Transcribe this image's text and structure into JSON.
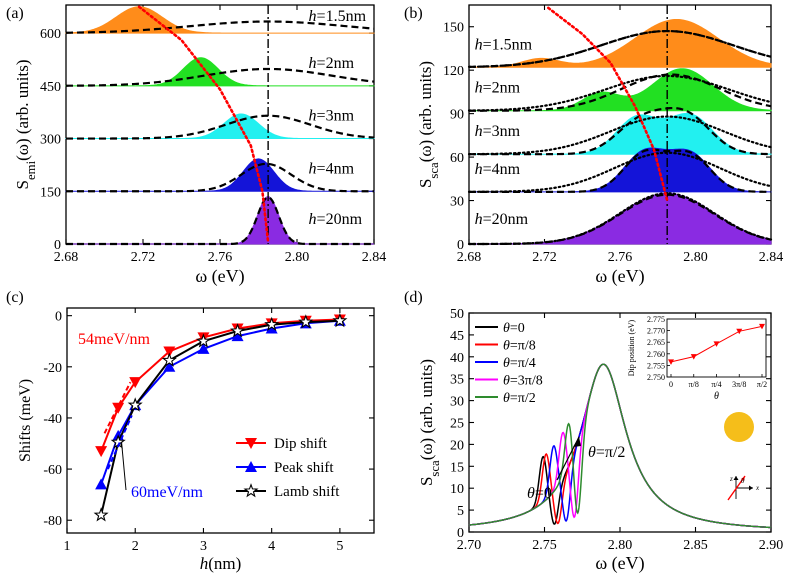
{
  "figure": {
    "panel_labels": [
      "(a)",
      "(b)",
      "(c)",
      "(d)"
    ]
  },
  "colors": {
    "h1_5": "#FF8C1A",
    "h2": "#22E022",
    "h3": "#22F0F0",
    "h4": "#1414D8",
    "h20": "#8A2BE2",
    "red": "#FF0000",
    "blue": "#0000FF",
    "black": "#000000",
    "magenta": "#FF00FF",
    "green": "#2E8B2E"
  },
  "chart_data": [
    {
      "panel": "(a)",
      "type": "area",
      "xlabel": "ω (eV)",
      "ylabel": "S_emi(ω) (arb. units)",
      "ylabel_main": "S",
      "ylabel_sub": "emi",
      "ylabel_rest": "(ω) (arb. units)",
      "xlim": [
        2.68,
        2.84
      ],
      "ylim": [
        0,
        680
      ],
      "xticks": [
        2.68,
        2.72,
        2.76,
        2.8,
        2.84
      ],
      "xtick_labels": [
        "2.68",
        "2.72",
        "2.76",
        "2.80",
        "2.84"
      ],
      "yticks": [
        0,
        150,
        300,
        450,
        600
      ],
      "ytick_labels": [
        "0",
        "150",
        "300",
        "450",
        "600"
      ],
      "vline_x": 2.785,
      "series": [
        {
          "name": "h=1.5nm",
          "offset": 600,
          "fill_peaks": [
            {
              "x": 2.718,
              "a": 75,
              "w": 0.012
            }
          ],
          "dash_peaks": [
            {
              "x": 2.785,
              "a": 33,
              "w": 0.04
            }
          ]
        },
        {
          "name": "h=2nm",
          "offset": 450,
          "fill_peaks": [
            {
              "x": 2.75,
              "a": 80,
              "w": 0.009
            }
          ],
          "dash_peaks": [
            {
              "x": 2.785,
              "a": 48,
              "w": 0.033
            }
          ]
        },
        {
          "name": "h=3nm",
          "offset": 300,
          "fill_peaks": [
            {
              "x": 2.771,
              "a": 70,
              "w": 0.009
            }
          ],
          "dash_peaks": [
            {
              "x": 2.785,
              "a": 65,
              "w": 0.022
            }
          ]
        },
        {
          "name": "h=4nm",
          "offset": 150,
          "fill_peaks": [
            {
              "x": 2.78,
              "a": 92,
              "w": 0.008
            }
          ],
          "dash_peaks": [
            {
              "x": 2.784,
              "a": 78,
              "w": 0.013
            }
          ]
        },
        {
          "name": "h=20nm",
          "offset": 0,
          "fill_peaks": [
            {
              "x": 2.785,
              "a": 135,
              "w": 0.0055
            }
          ],
          "dash_peaks": [
            {
              "x": 2.785,
              "a": 133,
              "w": 0.0055
            }
          ]
        }
      ],
      "trace": [
        [
          2.718,
          675
        ],
        [
          2.74,
          580
        ],
        [
          2.76,
          440
        ],
        [
          2.776,
          280
        ],
        [
          2.782,
          150
        ],
        [
          2.785,
          5
        ]
      ],
      "label_x": 2.806
    },
    {
      "panel": "(b)",
      "type": "area",
      "xlabel": "ω (eV)",
      "ylabel": "S_sca(ω) (arb. units)",
      "ylabel_main": "S",
      "ylabel_sub": "sca",
      "ylabel_rest": "(ω) (arb. units)",
      "xlim": [
        2.68,
        2.84
      ],
      "ylim": [
        0,
        165
      ],
      "xticks": [
        2.68,
        2.72,
        2.76,
        2.8,
        2.84
      ],
      "xtick_labels": [
        "2.68",
        "2.72",
        "2.76",
        "2.80",
        "2.84"
      ],
      "yticks": [
        0,
        30,
        60,
        90,
        120,
        150
      ],
      "ytick_labels": [
        "0",
        "30",
        "60",
        "90",
        "120",
        "150"
      ],
      "vline_x": 2.785,
      "series": [
        {
          "name": "h=1.5nm",
          "offset": 122,
          "fill_peaks": [
            {
              "x": 2.79,
              "a": 33,
              "w": 0.022
            },
            {
              "x": 2.718,
              "a": 6,
              "w": 0.01
            }
          ],
          "dash_peaks": [
            {
              "x": 2.785,
              "a": 25,
              "w": 0.035
            }
          ],
          "dot_peaks": [
            {
              "x": 2.785,
              "a": 25,
              "w": 0.035
            }
          ]
        },
        {
          "name": "h=2nm",
          "offset": 92,
          "fill_peaks": [
            {
              "x": 2.793,
              "a": 29,
              "w": 0.016
            },
            {
              "x": 2.75,
              "a": 12,
              "w": 0.01
            }
          ],
          "dash_peaks": [
            {
              "x": 2.787,
              "a": 25,
              "w": 0.026
            }
          ],
          "dot_peaks": [
            {
              "x": 2.785,
              "a": 24,
              "w": 0.033
            }
          ]
        },
        {
          "name": "h=3nm",
          "offset": 62,
          "fill_peaks": [
            {
              "x": 2.797,
              "a": 27,
              "w": 0.012
            },
            {
              "x": 2.769,
              "a": 25,
              "w": 0.011
            }
          ],
          "dash_peaks": [
            {
              "x": 2.795,
              "a": 26,
              "w": 0.013
            },
            {
              "x": 2.771,
              "a": 22,
              "w": 0.013
            }
          ],
          "dot_peaks": [
            {
              "x": 2.785,
              "a": 26,
              "w": 0.03
            }
          ]
        },
        {
          "name": "h=4nm",
          "offset": 36,
          "fill_peaks": [
            {
              "x": 2.797,
              "a": 26,
              "w": 0.011
            },
            {
              "x": 2.773,
              "a": 27,
              "w": 0.011
            }
          ],
          "dash_peaks": [
            {
              "x": 2.797,
              "a": 25,
              "w": 0.011
            },
            {
              "x": 2.773,
              "a": 26,
              "w": 0.011
            }
          ],
          "dot_peaks": [
            {
              "x": 2.785,
              "a": 27,
              "w": 0.028
            }
          ]
        },
        {
          "name": "h=20nm",
          "offset": 0,
          "fill_peaks": [
            {
              "x": 2.785,
              "a": 35,
              "w": 0.025
            }
          ],
          "dash_peaks": [
            {
              "x": 2.785,
              "a": 34,
              "w": 0.025
            }
          ],
          "dot_peaks": [
            {
              "x": 2.785,
              "a": 35,
              "w": 0.025
            }
          ]
        }
      ],
      "trace": [
        [
          2.722,
          163
        ],
        [
          2.74,
          145
        ],
        [
          2.755,
          125
        ],
        [
          2.768,
          95
        ],
        [
          2.778,
          65
        ],
        [
          2.785,
          30
        ]
      ],
      "label_x": 2.683
    },
    {
      "panel": "(c)",
      "type": "line",
      "xlabel": "h(nm)",
      "ylabel": "Shifts (meV)",
      "xlim": [
        1,
        5.5
      ],
      "ylim": [
        -85,
        3
      ],
      "xticks": [
        1,
        2,
        3,
        4,
        5
      ],
      "xtick_labels": [
        "1",
        "2",
        "3",
        "4",
        "5"
      ],
      "yticks": [
        0,
        -20,
        -40,
        -60,
        -80
      ],
      "ytick_labels": [
        "0",
        "-20",
        "-40",
        "-60",
        "-80"
      ],
      "x": [
        1.5,
        1.75,
        2,
        2.5,
        3,
        3.5,
        4,
        4.5,
        5
      ],
      "series": [
        {
          "name": "Dip shift",
          "values": [
            -53,
            -36,
            -26,
            -14,
            -8.5,
            -5,
            -3,
            -2,
            -1.5
          ]
        },
        {
          "name": "Peak shift",
          "values": [
            -66,
            -47,
            -35,
            -20,
            -13,
            -8,
            -5,
            -3,
            -2
          ]
        },
        {
          "name": "Lamb shift",
          "values": [
            -78,
            -49.5,
            -35,
            -17.5,
            -10,
            -6,
            -3.5,
            -2.5,
            -2
          ]
        }
      ],
      "annotations": [
        "54meV/nm",
        "60meV/nm"
      ],
      "slope_lines": [
        [
          [
            1.55,
            -46
          ],
          [
            1.93,
            -26
          ]
        ],
        [
          [
            1.6,
            -60
          ],
          [
            1.95,
            -39
          ]
        ]
      ]
    },
    {
      "panel": "(d)",
      "type": "line",
      "xlabel": "ω (eV)",
      "ylabel": "S_sca(ω) (arb. units)",
      "ylabel_main": "S",
      "ylabel_sub": "sca",
      "ylabel_rest": "(ω) (arb. units)",
      "xlim": [
        2.7,
        2.9
      ],
      "ylim": [
        0,
        50
      ],
      "xticks": [
        2.7,
        2.75,
        2.8,
        2.85,
        2.9
      ],
      "xtick_labels": [
        "2.70",
        "2.75",
        "2.80",
        "2.85",
        "2.90"
      ],
      "yticks": [
        0,
        5,
        10,
        15,
        20,
        25,
        30,
        35,
        40,
        45,
        50
      ],
      "ytick_labels": [
        "0",
        "5",
        "10",
        "15",
        "20",
        "25",
        "30",
        "35",
        "40",
        "45",
        "50"
      ],
      "series": [
        {
          "name": "θ=0",
          "dip": 2.7565,
          "lor_peak": 2.749
        },
        {
          "name": "θ=π/8",
          "dip": 2.7588,
          "lor_peak": 2.751
        },
        {
          "name": "θ=π/4",
          "dip": 2.7643,
          "lor_peak": 2.756
        },
        {
          "name": "θ=3π/8",
          "dip": 2.7697,
          "lor_peak": 2.762
        },
        {
          "name": "θ=π/2",
          "dip": 2.7718,
          "lor_peak": 2.766
        }
      ],
      "annotations": [
        "θ=π/2",
        "θ=0"
      ],
      "inset": {
        "type": "line",
        "xlabel": "θ",
        "ylabel": "Dip position (eV)",
        "x_labels": [
          "0",
          "π/8",
          "π/4",
          "3π/8",
          "π/2"
        ],
        "values": [
          2.7565,
          2.7588,
          2.7643,
          2.7697,
          2.7718
        ],
        "ylim": [
          2.75,
          2.775
        ],
        "yticks": [
          2.75,
          2.755,
          2.76,
          2.765,
          2.77,
          2.775
        ],
        "ytick_labels": [
          "2.750",
          "2.755",
          "2.760",
          "2.765",
          "2.770",
          "2.775"
        ]
      },
      "schematic_labels": [
        "z",
        "θ",
        "x"
      ]
    }
  ]
}
